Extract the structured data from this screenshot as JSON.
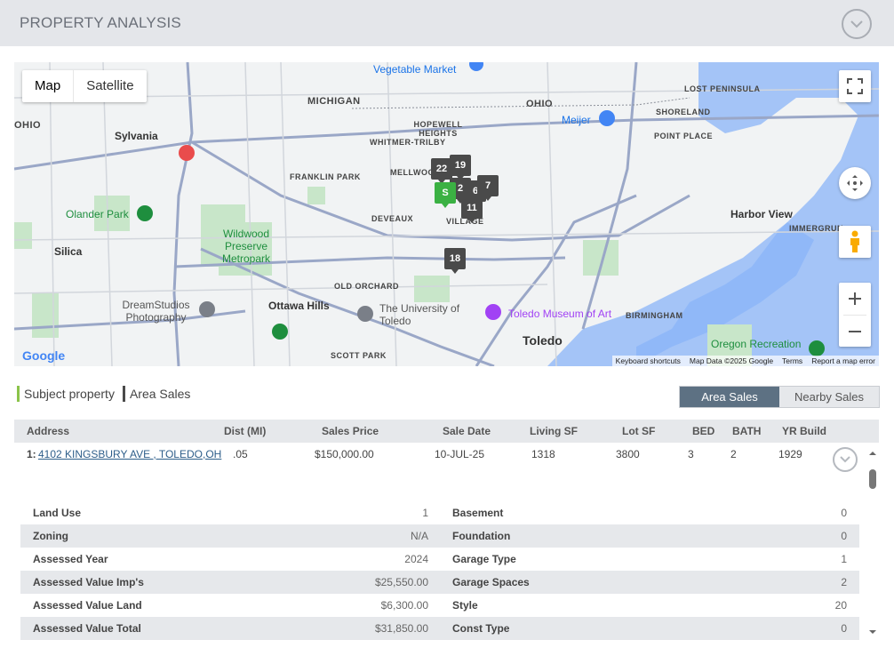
{
  "header": {
    "title": "PROPERTY ANALYSIS"
  },
  "map": {
    "type_buttons": {
      "map": "Map",
      "satellite": "Satellite"
    },
    "labels": {
      "vegetable_market": "Vegetable Market",
      "michigan": "MICHIGAN",
      "ohio_top": "OHIO",
      "ohio_left": "OHIO",
      "meijer": "Meijer",
      "lost_peninsula": "LOST PENINSULA",
      "shoreland": "SHORELAND",
      "point_place": "POINT PLACE",
      "hopewell_heights": "HOPEWELL HEIGHTS",
      "whitmer_trilby": "WHITMER-TRILBY",
      "sylvania": "Sylvania",
      "franklin_park": "FRANKLIN PARK",
      "mellwood": "MELLWOOD",
      "deveaux": "DEVEAUX",
      "olander_park": "Olander Park",
      "wildwood": "Wildwood Preserve Metropark",
      "harbor_view": "Harbor View",
      "immergrun": "IMMERGRUN",
      "silica": "Silica",
      "old_orchard": "OLD ORCHARD",
      "dreamstudios": "DreamStudios Photography",
      "ottawa_hills": "Ottawa Hills",
      "university": "The University of Toledo",
      "museum": "Toledo Museum of Art",
      "birmingham": "BIRMINGHAM",
      "toledo": "Toledo",
      "oregon": "Oregon Recreation",
      "scott_park": "SCOTT PARK",
      "village": "VILLAGE"
    },
    "markers": [
      "22",
      "19",
      "2",
      "6",
      "7",
      "11",
      "S",
      "18"
    ],
    "attribution": {
      "google": "Google",
      "shortcuts": "Keyboard shortcuts",
      "data": "Map Data ©2025 Google",
      "terms": "Terms",
      "report": "Report a map error"
    }
  },
  "legend": {
    "subject": "Subject property",
    "area": "Area Sales"
  },
  "toggle": {
    "area_sales": "Area Sales",
    "nearby_sales": "Nearby Sales"
  },
  "table": {
    "headers": {
      "address": "Address",
      "dist": "Dist (MI)",
      "price": "Sales Price",
      "date": "Sale Date",
      "living": "Living SF",
      "lot": "Lot SF",
      "bed": "BED",
      "bath": "BATH",
      "yr": "YR Build"
    },
    "row": {
      "index": "1:",
      "address": "4102 KINGSBURY AVE , TOLEDO,OH",
      "dist": ".05",
      "price": "$150,000.00",
      "date": "10-JUL-25",
      "living": "1318",
      "lot": "3800",
      "bed": "3",
      "bath": "2",
      "yr": "1929"
    }
  },
  "details": {
    "rows": [
      {
        "l1": "Land Use",
        "v1": "1",
        "l2": "Basement",
        "v2": "0"
      },
      {
        "l1": "Zoning",
        "v1": "N/A",
        "l2": "Foundation",
        "v2": "0"
      },
      {
        "l1": "Assessed Year",
        "v1": "2024",
        "l2": "Garage Type",
        "v2": "1"
      },
      {
        "l1": "Assessed Value Imp's",
        "v1": "$25,550.00",
        "l2": "Garage Spaces",
        "v2": "2"
      },
      {
        "l1": "Assessed Value Land",
        "v1": "$6,300.00",
        "l2": "Style",
        "v2": "20"
      },
      {
        "l1": "Assessed Value Total",
        "v1": "$31,850.00",
        "l2": "Const Type",
        "v2": "0"
      }
    ]
  },
  "colors": {
    "active_toggle": "#5d7183",
    "subject_marker": "#3bb143",
    "area_marker": "#4a4a4a",
    "link": "#2e5e8a"
  }
}
